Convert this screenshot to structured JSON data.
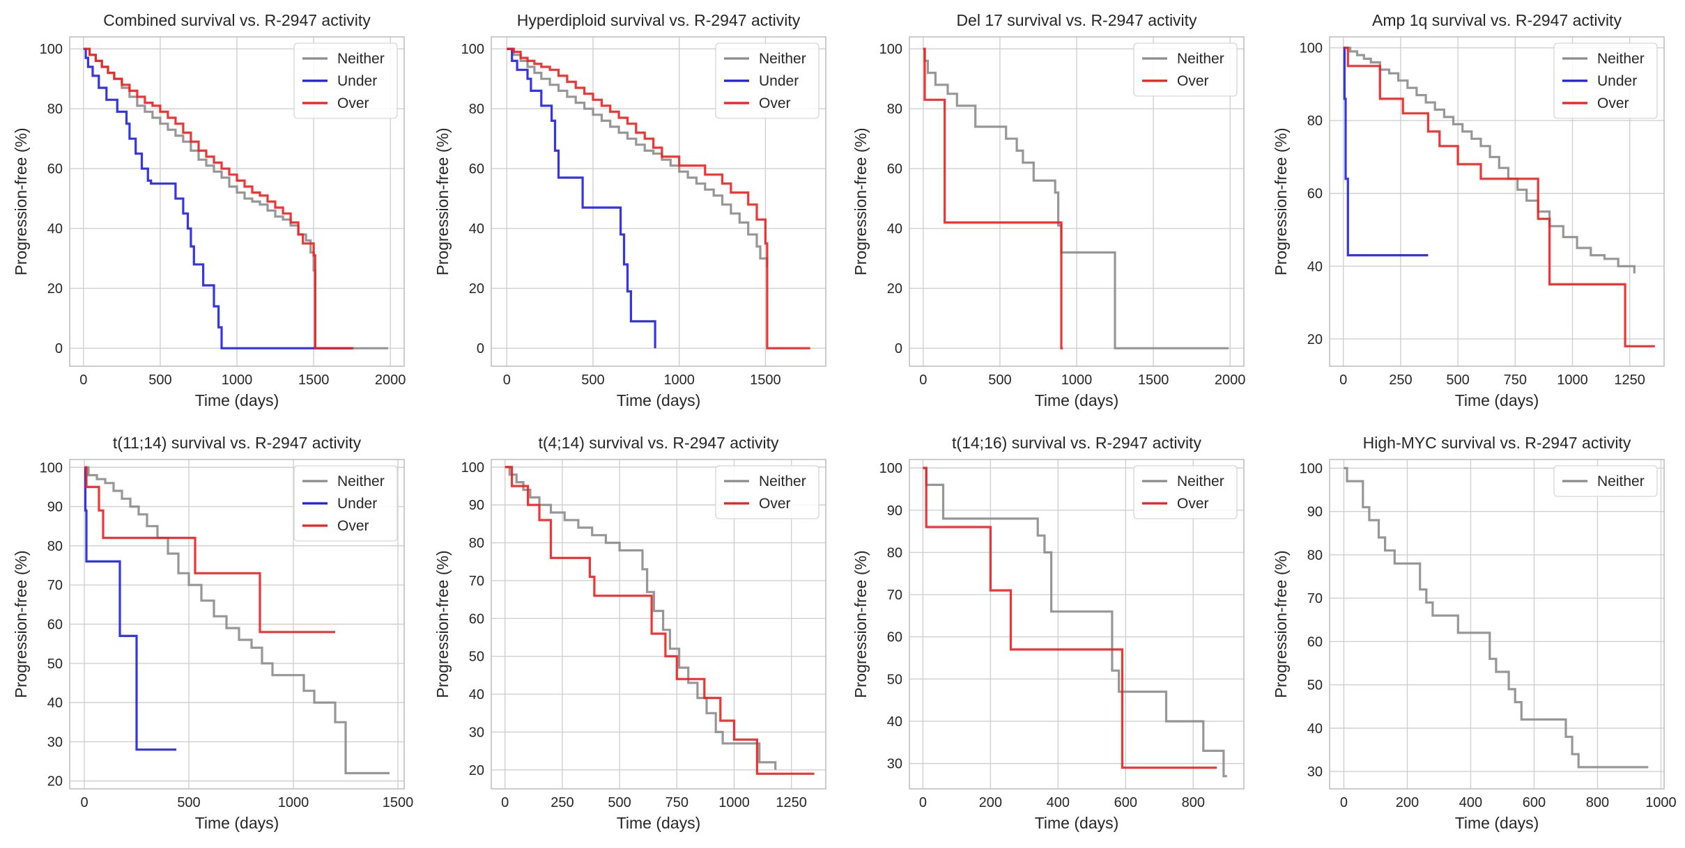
{
  "figure_title": "",
  "colors": {
    "Neither": "#8c8c8c",
    "Under": "#1f1fe6",
    "Over": "#f01e1e",
    "grid": "#d0d0d0",
    "axes": "#bfbfbf",
    "text": "#262626"
  },
  "chart_data": [
    {
      "type": "line",
      "title": "Combined survival vs. R-2947 activity",
      "xlabel": "Time (days)",
      "ylabel": "Progression-free (%)",
      "xlim": [
        -90,
        2090
      ],
      "ylim": [
        -6,
        104
      ],
      "xticks": [
        0,
        500,
        1000,
        1500,
        2000
      ],
      "yticks": [
        0,
        20,
        40,
        60,
        80,
        100
      ],
      "grid": true,
      "legend_position": "top-right",
      "legend": [
        "Neither",
        "Under",
        "Over"
      ],
      "series": [
        {
          "name": "Neither",
          "x": [
            0,
            40,
            80,
            120,
            160,
            200,
            250,
            300,
            350,
            400,
            450,
            500,
            550,
            600,
            650,
            700,
            750,
            800,
            850,
            900,
            950,
            1000,
            1050,
            1100,
            1150,
            1200,
            1250,
            1300,
            1350,
            1400,
            1450,
            1480,
            1500,
            1510,
            1550,
            1600,
            1700,
            1800,
            1900,
            1985
          ],
          "y": [
            100,
            98,
            96,
            94,
            92,
            90,
            87,
            84,
            81,
            79,
            77,
            75,
            73,
            71,
            69,
            66,
            63,
            61,
            59,
            57,
            54,
            52,
            50,
            49,
            48,
            46,
            44,
            43,
            41,
            38,
            36,
            32,
            26,
            0,
            0,
            0,
            0,
            0,
            0,
            0
          ]
        },
        {
          "name": "Under",
          "x": [
            0,
            15,
            30,
            60,
            100,
            150,
            220,
            280,
            300,
            340,
            380,
            420,
            440,
            600,
            650,
            680,
            700,
            720,
            780,
            850,
            880,
            900,
            1200,
            1500,
            1750
          ],
          "y": [
            100,
            97,
            94,
            91,
            87,
            83,
            79,
            75,
            70,
            65,
            60,
            56,
            55,
            50,
            45,
            40,
            34,
            28,
            21,
            14,
            7,
            0,
            0,
            0,
            0
          ]
        },
        {
          "name": "Over",
          "x": [
            0,
            40,
            80,
            120,
            160,
            200,
            250,
            300,
            350,
            400,
            450,
            500,
            550,
            600,
            650,
            700,
            750,
            800,
            850,
            900,
            950,
            1000,
            1050,
            1100,
            1150,
            1200,
            1250,
            1300,
            1350,
            1400,
            1430,
            1500,
            1510,
            1600,
            1650,
            1760
          ],
          "y": [
            100,
            98,
            96,
            94,
            92,
            90,
            88,
            86,
            84,
            82,
            81,
            79,
            77,
            75,
            72,
            69,
            66,
            64,
            62,
            60,
            58,
            56,
            54,
            52,
            51,
            49,
            47,
            45,
            42,
            38,
            35,
            31,
            0,
            0,
            0,
            0
          ]
        }
      ]
    },
    {
      "type": "line",
      "title": "Hyperdiploid survival vs. R-2947 activity",
      "xlabel": "Time (days)",
      "ylabel": "Progression-free (%)",
      "xlim": [
        -90,
        1850
      ],
      "ylim": [
        -6,
        104
      ],
      "xticks": [
        0,
        500,
        1000,
        1500
      ],
      "yticks": [
        0,
        20,
        40,
        60,
        80,
        100
      ],
      "grid": true,
      "legend_position": "top-right",
      "legend": [
        "Neither",
        "Under",
        "Over"
      ],
      "series": [
        {
          "name": "Neither",
          "x": [
            0,
            40,
            80,
            120,
            160,
            200,
            250,
            300,
            350,
            400,
            450,
            500,
            550,
            600,
            650,
            700,
            750,
            800,
            850,
            900,
            950,
            1000,
            1050,
            1100,
            1150,
            1200,
            1250,
            1300,
            1350,
            1400,
            1450,
            1470,
            1490,
            1510
          ],
          "y": [
            100,
            98,
            96,
            94,
            92,
            90,
            88,
            86,
            84,
            82,
            80,
            78,
            76,
            74,
            72,
            70,
            68,
            66,
            65,
            63,
            61,
            59,
            57,
            55,
            53,
            51,
            48,
            45,
            42,
            38,
            34,
            30,
            30,
            27
          ]
        },
        {
          "name": "Under",
          "x": [
            0,
            30,
            60,
            120,
            140,
            200,
            260,
            280,
            300,
            420,
            440,
            580,
            660,
            680,
            700,
            720,
            770,
            860
          ],
          "y": [
            100,
            96,
            93,
            90,
            86,
            81,
            76,
            66,
            57,
            57,
            47,
            47,
            38,
            28,
            19,
            9,
            9,
            0
          ]
        },
        {
          "name": "Over",
          "x": [
            0,
            40,
            80,
            120,
            160,
            200,
            250,
            300,
            350,
            400,
            450,
            500,
            550,
            600,
            650,
            700,
            750,
            800,
            850,
            900,
            1000,
            1050,
            1100,
            1150,
            1200,
            1250,
            1300,
            1350,
            1400,
            1450,
            1500,
            1510,
            1600,
            1760
          ],
          "y": [
            100,
            99,
            97,
            96,
            95,
            94,
            93,
            91,
            89,
            87,
            85,
            83,
            81,
            79,
            77,
            75,
            72,
            70,
            67,
            64,
            61,
            61,
            61,
            58,
            58,
            55,
            52,
            52,
            48,
            43,
            35,
            0,
            0,
            0
          ]
        }
      ]
    },
    {
      "type": "line",
      "title": "Del 17 survival vs. R-2947 activity",
      "xlabel": "Time (days)",
      "ylabel": "Progression-free (%)",
      "xlim": [
        -90,
        2090
      ],
      "ylim": [
        -6,
        104
      ],
      "xticks": [
        0,
        500,
        1000,
        1500,
        2000
      ],
      "yticks": [
        0,
        20,
        40,
        60,
        80,
        100
      ],
      "grid": true,
      "legend_position": "top-right",
      "legend": [
        "Neither",
        "Over"
      ],
      "series": [
        {
          "name": "Neither",
          "x": [
            0,
            10,
            30,
            80,
            160,
            220,
            340,
            540,
            610,
            650,
            720,
            860,
            880,
            900,
            1250,
            1400,
            1990
          ],
          "y": [
            100,
            96,
            92,
            88,
            85,
            81,
            74,
            70,
            66,
            62,
            56,
            52,
            41,
            32,
            0,
            0,
            0
          ]
        },
        {
          "name": "Over",
          "x": [
            0,
            10,
            140,
            880,
            900,
            910
          ],
          "y": [
            100,
            83,
            42,
            42,
            0,
            0
          ]
        }
      ]
    },
    {
      "type": "line",
      "title": "Amp 1q survival vs. R-2947 activity",
      "xlabel": "Time (days)",
      "ylabel": "Progression-free (%)",
      "xlim": [
        -60,
        1400
      ],
      "ylim": [
        12.5,
        103
      ],
      "xticks": [
        0,
        250,
        500,
        750,
        1000,
        1250
      ],
      "yticks": [
        20,
        40,
        60,
        80,
        100
      ],
      "grid": true,
      "legend_position": "top-right",
      "legend": [
        "Neither",
        "Under",
        "Over"
      ],
      "series": [
        {
          "name": "Neither",
          "x": [
            0,
            30,
            60,
            90,
            120,
            160,
            200,
            240,
            280,
            320,
            360,
            400,
            440,
            480,
            520,
            560,
            600,
            640,
            680,
            720,
            760,
            800,
            850,
            900,
            960,
            1020,
            1080,
            1140,
            1200,
            1270
          ],
          "y": [
            100,
            99,
            98,
            97,
            96,
            94,
            93,
            91,
            89,
            87,
            85,
            83,
            81,
            79,
            77,
            75,
            73,
            70,
            67,
            64,
            61,
            58,
            55,
            51,
            48,
            45,
            43,
            42,
            40,
            38
          ]
        },
        {
          "name": "Under",
          "x": [
            0,
            5,
            10,
            20,
            370
          ],
          "y": [
            100,
            86,
            64,
            43,
            43
          ]
        },
        {
          "name": "Over",
          "x": [
            0,
            20,
            160,
            260,
            370,
            420,
            500,
            600,
            850,
            900,
            1200,
            1230,
            1360
          ],
          "y": [
            100,
            95,
            86,
            82,
            77,
            73,
            68,
            64,
            53,
            35,
            35,
            18,
            18
          ]
        }
      ]
    },
    {
      "type": "line",
      "title": "t(11;14) survival vs. R-2947 activity",
      "xlabel": "Time (days)",
      "ylabel": "Progression-free (%)",
      "xlim": [
        -70,
        1530
      ],
      "ylim": [
        18,
        102
      ],
      "xticks": [
        0,
        500,
        1000,
        1500
      ],
      "yticks": [
        20,
        30,
        40,
        50,
        60,
        70,
        80,
        90,
        100
      ],
      "grid": true,
      "legend_position": "top-right",
      "legend": [
        "Neither",
        "Under",
        "Over"
      ],
      "series": [
        {
          "name": "Neither",
          "x": [
            0,
            20,
            60,
            100,
            140,
            180,
            220,
            260,
            300,
            350,
            400,
            450,
            500,
            560,
            620,
            680,
            740,
            800,
            850,
            900,
            1050,
            1100,
            1200,
            1250,
            1460
          ],
          "y": [
            100,
            98,
            97,
            96,
            94,
            92,
            90,
            88,
            85,
            82,
            78,
            73,
            70,
            66,
            62,
            59,
            56,
            54,
            50,
            47,
            43,
            40,
            35,
            22,
            22
          ]
        },
        {
          "name": "Under",
          "x": [
            0,
            5,
            10,
            170,
            250,
            440
          ],
          "y": [
            100,
            89,
            76,
            57,
            28,
            28
          ]
        },
        {
          "name": "Over",
          "x": [
            0,
            10,
            70,
            90,
            530,
            840,
            1200
          ],
          "y": [
            100,
            95,
            89,
            82,
            73,
            58,
            58
          ]
        }
      ]
    },
    {
      "type": "line",
      "title": "t(4;14) survival vs. R-2947 activity",
      "xlabel": "Time (days)",
      "ylabel": "Progression-free (%)",
      "xlim": [
        -60,
        1400
      ],
      "ylim": [
        15,
        102
      ],
      "xticks": [
        0,
        250,
        500,
        750,
        1000,
        1250
      ],
      "yticks": [
        20,
        30,
        40,
        50,
        60,
        70,
        80,
        90,
        100
      ],
      "grid": true,
      "legend_position": "top-right",
      "legend": [
        "Neither",
        "Over"
      ],
      "series": [
        {
          "name": "Neither",
          "x": [
            0,
            20,
            50,
            80,
            110,
            150,
            200,
            260,
            320,
            380,
            440,
            500,
            600,
            620,
            650,
            690,
            720,
            760,
            800,
            840,
            880,
            920,
            950,
            1050,
            1110,
            1180
          ],
          "y": [
            100,
            98,
            96,
            94,
            92,
            90,
            88,
            86,
            84,
            82,
            80,
            78,
            73,
            67,
            62,
            57,
            52,
            47,
            43,
            39,
            35,
            30,
            27,
            27,
            22,
            20
          ]
        },
        {
          "name": "Over",
          "x": [
            0,
            30,
            100,
            150,
            200,
            370,
            390,
            600,
            640,
            700,
            750,
            850,
            870,
            940,
            1000,
            1100,
            1350
          ],
          "y": [
            100,
            95,
            90,
            86,
            76,
            71,
            66,
            66,
            56,
            50,
            44,
            44,
            39,
            33,
            28,
            19,
            19
          ]
        }
      ]
    },
    {
      "type": "line",
      "title": "t(14;16) survival vs. R-2947 activity",
      "xlabel": "Time (days)",
      "ylabel": "Progression-free (%)",
      "xlim": [
        -40,
        950
      ],
      "ylim": [
        24,
        102
      ],
      "xticks": [
        0,
        200,
        400,
        600,
        800
      ],
      "yticks": [
        30,
        40,
        50,
        60,
        70,
        80,
        90,
        100
      ],
      "grid": true,
      "legend_position": "top-right",
      "legend": [
        "Neither",
        "Over"
      ],
      "series": [
        {
          "name": "Neither",
          "x": [
            0,
            10,
            60,
            250,
            340,
            360,
            380,
            550,
            560,
            580,
            720,
            830,
            890,
            900
          ],
          "y": [
            100,
            96,
            88,
            88,
            84,
            80,
            66,
            66,
            52,
            47,
            40,
            33,
            27,
            27
          ]
        },
        {
          "name": "Over",
          "x": [
            0,
            10,
            200,
            260,
            590,
            870
          ],
          "y": [
            100,
            86,
            71,
            57,
            29,
            29
          ]
        }
      ]
    },
    {
      "type": "line",
      "title": "High-MYC survival vs. R-2947 activity",
      "xlabel": "Time (days)",
      "ylabel": "Progression-free (%)",
      "xlim": [
        -45,
        1010
      ],
      "ylim": [
        26,
        102
      ],
      "xticks": [
        0,
        200,
        400,
        600,
        800,
        1000
      ],
      "yticks": [
        30,
        40,
        50,
        60,
        70,
        80,
        90,
        100
      ],
      "grid": true,
      "legend_position": "top-right",
      "legend": [
        "Neither"
      ],
      "series": [
        {
          "name": "Neither",
          "x": [
            0,
            10,
            60,
            80,
            110,
            130,
            160,
            240,
            260,
            280,
            360,
            460,
            480,
            520,
            540,
            560,
            700,
            720,
            740,
            960
          ],
          "y": [
            100,
            97,
            91,
            88,
            84,
            81,
            78,
            72,
            69,
            66,
            62,
            56,
            53,
            49,
            46,
            42,
            38,
            34,
            31,
            31
          ]
        }
      ]
    }
  ]
}
